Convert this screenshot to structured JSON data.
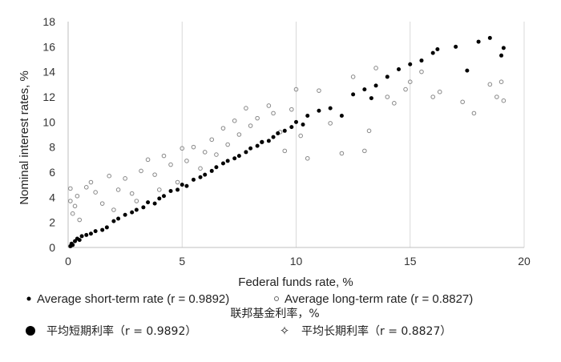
{
  "chart_data": {
    "type": "scatter",
    "xlabel": "Federal funds rate, %",
    "xlabel_cn": "联邦基金利率，%",
    "ylabel": "Nominal interest rates, %",
    "xlim": [
      0,
      20
    ],
    "ylim": [
      0,
      18
    ],
    "xticks": [
      "0",
      "5",
      "10",
      "15",
      "20"
    ],
    "yticks": [
      "0",
      "2",
      "4",
      "6",
      "8",
      "10",
      "12",
      "14",
      "16",
      "18"
    ],
    "grid": "vertical",
    "legend_placement": "bottom",
    "series": [
      {
        "name": "Average short-term rate (r = 0.9892)",
        "name_cn": "平均短期利率（r = 0.9892）",
        "marker": "filled-circle",
        "color": "#000000",
        "points": [
          [
            0.1,
            0.1
          ],
          [
            0.15,
            0.3
          ],
          [
            0.2,
            0.2
          ],
          [
            0.3,
            0.5
          ],
          [
            0.4,
            0.7
          ],
          [
            0.5,
            0.6
          ],
          [
            0.6,
            0.9
          ],
          [
            0.8,
            1.0
          ],
          [
            1.0,
            1.1
          ],
          [
            1.2,
            1.3
          ],
          [
            1.5,
            1.4
          ],
          [
            1.7,
            1.6
          ],
          [
            2.0,
            2.1
          ],
          [
            2.2,
            2.3
          ],
          [
            2.5,
            2.6
          ],
          [
            2.8,
            2.8
          ],
          [
            3.0,
            3.0
          ],
          [
            3.3,
            3.2
          ],
          [
            3.5,
            3.6
          ],
          [
            3.8,
            3.5
          ],
          [
            4.0,
            3.9
          ],
          [
            4.2,
            4.1
          ],
          [
            4.5,
            4.5
          ],
          [
            4.8,
            4.6
          ],
          [
            5.0,
            5.0
          ],
          [
            5.2,
            4.9
          ],
          [
            5.5,
            5.4
          ],
          [
            5.8,
            5.6
          ],
          [
            6.0,
            5.8
          ],
          [
            6.3,
            6.1
          ],
          [
            6.5,
            6.4
          ],
          [
            6.8,
            6.7
          ],
          [
            7.0,
            6.9
          ],
          [
            7.3,
            7.1
          ],
          [
            7.5,
            7.3
          ],
          [
            7.8,
            7.6
          ],
          [
            8.0,
            7.9
          ],
          [
            8.3,
            8.1
          ],
          [
            8.5,
            8.4
          ],
          [
            8.8,
            8.5
          ],
          [
            9.0,
            8.8
          ],
          [
            9.2,
            9.1
          ],
          [
            9.5,
            9.3
          ],
          [
            9.8,
            9.6
          ],
          [
            10.0,
            10.0
          ],
          [
            10.3,
            9.8
          ],
          [
            10.5,
            10.5
          ],
          [
            11.0,
            10.9
          ],
          [
            11.5,
            11.1
          ],
          [
            12.0,
            10.5
          ],
          [
            12.5,
            12.2
          ],
          [
            13.0,
            12.6
          ],
          [
            13.3,
            11.9
          ],
          [
            13.5,
            12.9
          ],
          [
            14.0,
            13.6
          ],
          [
            14.5,
            14.2
          ],
          [
            15.0,
            14.6
          ],
          [
            15.5,
            14.9
          ],
          [
            16.0,
            15.5
          ],
          [
            16.2,
            15.8
          ],
          [
            17.0,
            16.0
          ],
          [
            17.5,
            14.1
          ],
          [
            18.0,
            16.4
          ],
          [
            18.5,
            16.7
          ],
          [
            19.0,
            15.3
          ],
          [
            19.1,
            15.9
          ]
        ]
      },
      {
        "name": "Average long-term rate (r = 0.8827)",
        "name_cn": "平均长期利率（r = 0.8827）",
        "marker": "open-circle",
        "color": "#888888",
        "points": [
          [
            0.1,
            4.7
          ],
          [
            0.1,
            3.7
          ],
          [
            0.2,
            2.7
          ],
          [
            0.3,
            3.3
          ],
          [
            0.4,
            4.1
          ],
          [
            0.5,
            2.2
          ],
          [
            0.8,
            4.8
          ],
          [
            1.0,
            5.2
          ],
          [
            1.2,
            4.4
          ],
          [
            1.5,
            3.5
          ],
          [
            1.8,
            5.7
          ],
          [
            2.0,
            3.0
          ],
          [
            2.2,
            4.6
          ],
          [
            2.5,
            5.5
          ],
          [
            2.8,
            4.3
          ],
          [
            3.0,
            3.7
          ],
          [
            3.2,
            6.1
          ],
          [
            3.5,
            7.0
          ],
          [
            3.8,
            5.8
          ],
          [
            4.0,
            4.6
          ],
          [
            4.2,
            7.3
          ],
          [
            4.5,
            6.6
          ],
          [
            4.8,
            5.2
          ],
          [
            5.0,
            7.9
          ],
          [
            5.2,
            6.9
          ],
          [
            5.5,
            8.0
          ],
          [
            5.8,
            6.3
          ],
          [
            6.0,
            7.6
          ],
          [
            6.3,
            8.6
          ],
          [
            6.5,
            7.4
          ],
          [
            6.8,
            9.5
          ],
          [
            7.0,
            8.2
          ],
          [
            7.3,
            10.1
          ],
          [
            7.5,
            9.0
          ],
          [
            7.8,
            11.1
          ],
          [
            8.0,
            9.7
          ],
          [
            8.3,
            10.3
          ],
          [
            8.5,
            8.4
          ],
          [
            8.8,
            11.3
          ],
          [
            9.0,
            10.7
          ],
          [
            9.3,
            9.2
          ],
          [
            9.5,
            7.7
          ],
          [
            9.8,
            11.0
          ],
          [
            10.0,
            12.6
          ],
          [
            10.2,
            8.9
          ],
          [
            10.5,
            7.1
          ],
          [
            11.0,
            12.5
          ],
          [
            11.5,
            9.9
          ],
          [
            12.0,
            7.5
          ],
          [
            12.5,
            13.6
          ],
          [
            13.0,
            7.7
          ],
          [
            13.2,
            9.3
          ],
          [
            13.5,
            14.3
          ],
          [
            14.0,
            12.0
          ],
          [
            14.3,
            11.5
          ],
          [
            14.8,
            12.6
          ],
          [
            15.0,
            13.2
          ],
          [
            15.5,
            14.0
          ],
          [
            16.0,
            12.0
          ],
          [
            16.3,
            12.4
          ],
          [
            17.3,
            11.6
          ],
          [
            17.8,
            10.7
          ],
          [
            18.5,
            13.0
          ],
          [
            18.8,
            12.0
          ],
          [
            19.0,
            13.2
          ],
          [
            19.1,
            11.7
          ]
        ]
      }
    ]
  }
}
